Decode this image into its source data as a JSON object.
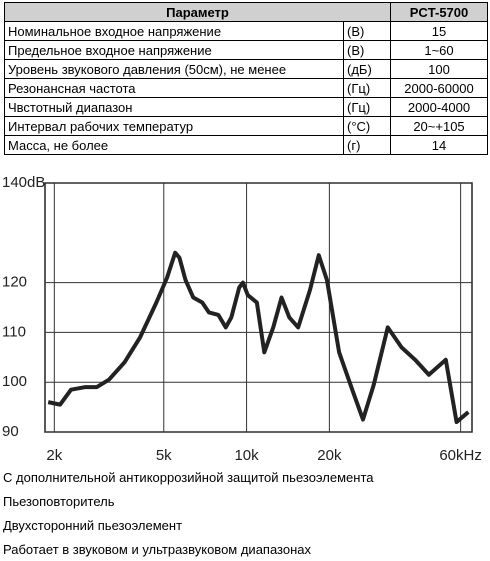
{
  "table": {
    "header": [
      "Параметр",
      "PCT-5700"
    ],
    "rows": [
      [
        "Номинальное входное напряжение",
        "(В)",
        "15"
      ],
      [
        "Предельное входное напряжение",
        "(В)",
        "1~60"
      ],
      [
        "Уровень звукового давления (50см), не менее",
        "(дБ)",
        "100"
      ],
      [
        "Резонансная частота",
        "(Гц)",
        "2000-60000"
      ],
      [
        "Чвстотный диапазон",
        "(Гц)",
        "2000-4000"
      ],
      [
        "Интервал рабочих температур",
        "(°С)",
        "20~+105"
      ],
      [
        "Масса, не более",
        "(г)",
        "14"
      ]
    ]
  },
  "chart_data": {
    "type": "line",
    "x_scale": "log",
    "grid": true,
    "x": [
      1900,
      2100,
      2300,
      2580,
      2850,
      3160,
      3600,
      4100,
      4700,
      5140,
      5500,
      5700,
      6000,
      6400,
      6900,
      7300,
      7900,
      8400,
      8800,
      9400,
      9700,
      10100,
      10900,
      11600,
      12500,
      13400,
      14300,
      15400,
      17000,
      18300,
      19600,
      21700,
      24400,
      26500,
      29000,
      32600,
      36600,
      41000,
      46000,
      53000,
      58000,
      64000
    ],
    "series": [
      {
        "color": "#222222",
        "values": [
          96,
          95.5,
          98.5,
          99,
          99,
          100.5,
          104,
          109,
          116,
          121,
          126,
          125,
          120.5,
          117,
          116,
          114,
          113.5,
          111,
          113,
          119,
          120,
          117.5,
          116,
          106,
          111,
          117,
          113,
          111,
          118.5,
          125.5,
          120.5,
          106,
          98,
          92.5,
          99.5,
          111,
          107,
          104.5,
          101.5,
          104.5,
          92,
          94
        ]
      }
    ],
    "xlim": [
      1850,
      66000
    ],
    "xticks": [
      {
        "value": 2000,
        "label": "2k"
      },
      {
        "value": 5000,
        "label": "5k"
      },
      {
        "value": 10000,
        "label": "10k"
      },
      {
        "value": 20000,
        "label": "20k"
      },
      {
        "value": 60000,
        "label": "60kHz"
      }
    ],
    "ylim": [
      90,
      140
    ],
    "yticks": [
      90,
      100,
      110,
      120,
      {
        "value": 140,
        "label": "140dB"
      }
    ]
  },
  "notes": [
    "С дополнительной антикоррозийной защитой пьезоэлемента",
    "Пьезоповторитель",
    "Двухсторонний пьезоэлемент",
    "Работает в звуковом и ультразвуковом диапазонах"
  ]
}
